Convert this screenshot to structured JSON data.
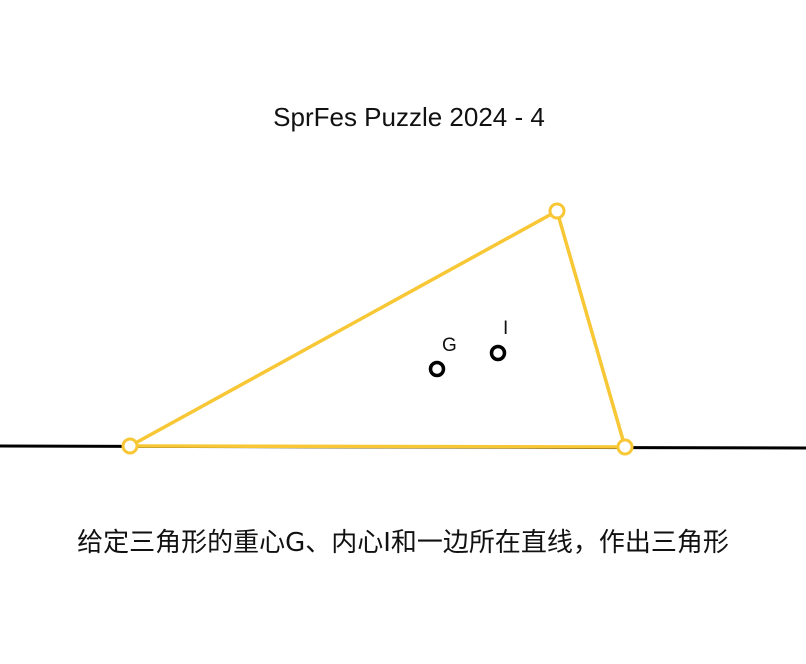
{
  "title": "SprFes Puzzle 2024 - 4",
  "caption": "给定三角形的重心G、内心I和一边所在直线，作出三角形",
  "points": {
    "centroid_label": "G",
    "incenter_label": "I"
  },
  "colors": {
    "triangle": "#f7c735",
    "line": "#000000",
    "given_points": "#000000",
    "background": "#ffffff"
  }
}
